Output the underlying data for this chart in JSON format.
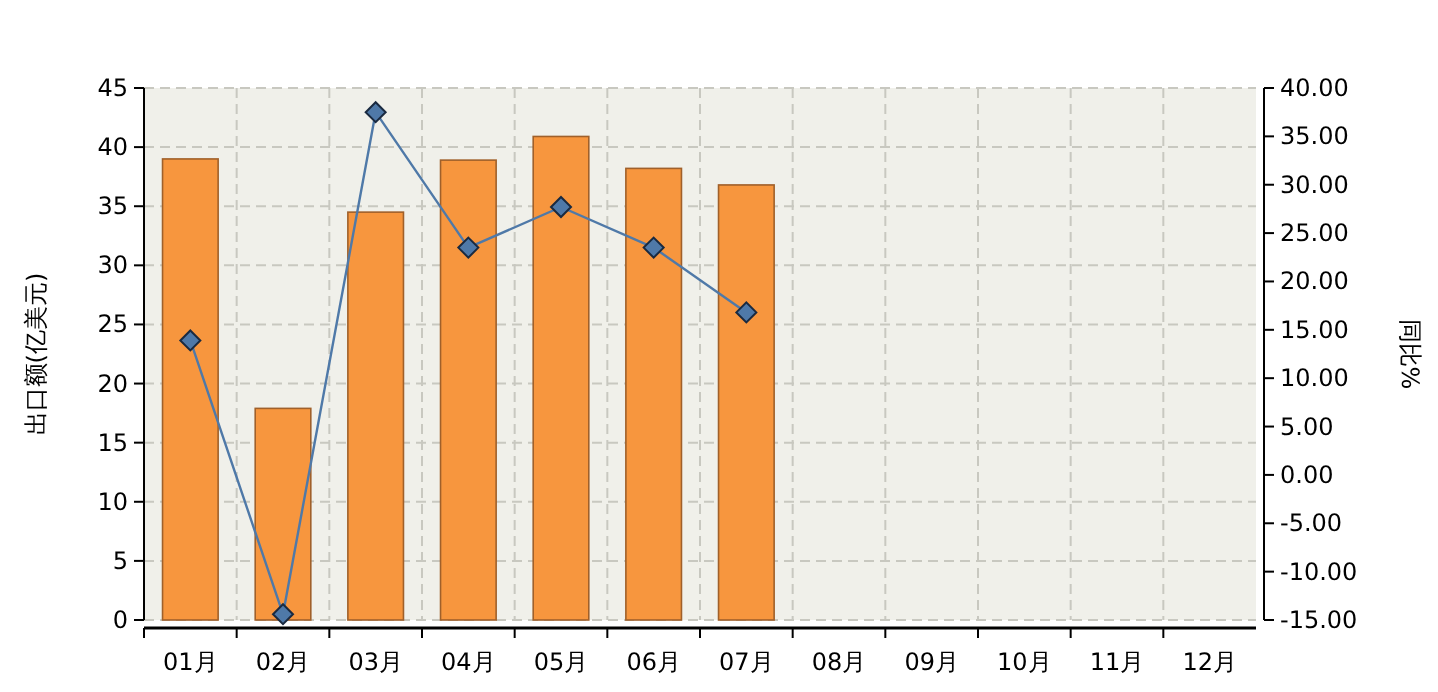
{
  "chart_data": {
    "type": "bar",
    "categories": [
      "01月",
      "02月",
      "03月",
      "04月",
      "05月",
      "06月",
      "07月",
      "08月",
      "09月",
      "10月",
      "11月",
      "12月"
    ],
    "series": [
      {
        "color": "#f7963e",
        "values": [
          39.0,
          17.9,
          34.5,
          38.9,
          40.9,
          38.2,
          36.8,
          null,
          null,
          null,
          null,
          null
        ]
      },
      {
        "type": "line",
        "axis": "y2",
        "color": "#4f79a8",
        "values": [
          13.9,
          -14.4,
          37.5,
          23.5,
          27.7,
          23.5,
          16.8,
          null,
          null,
          null,
          null,
          null
        ]
      }
    ],
    "ylabel": "出口额(亿美元)",
    "y2label": "同比%",
    "ylim": [
      0,
      45
    ],
    "yticks": [
      0,
      5,
      10,
      15,
      20,
      25,
      30,
      35,
      40,
      45
    ],
    "y2lim": [
      -15,
      40
    ],
    "y2ticks": [
      {
        "value": 40,
        "label": "40.00"
      },
      {
        "value": 35,
        "label": "35.00"
      },
      {
        "value": 30,
        "label": "30.00"
      },
      {
        "value": 25,
        "label": "25.00"
      },
      {
        "value": 20,
        "label": "20.00"
      },
      {
        "value": 15,
        "label": "15.00"
      },
      {
        "value": 10,
        "label": "10.00"
      },
      {
        "value": 5,
        "label": "5.00"
      },
      {
        "value": 0,
        "label": "0.00"
      },
      {
        "value": -5,
        "label": "-5.00"
      },
      {
        "value": -10,
        "label": "-10.00"
      },
      {
        "value": -15,
        "label": "-15.00"
      }
    ],
    "grid": true,
    "marker": "diamond"
  }
}
